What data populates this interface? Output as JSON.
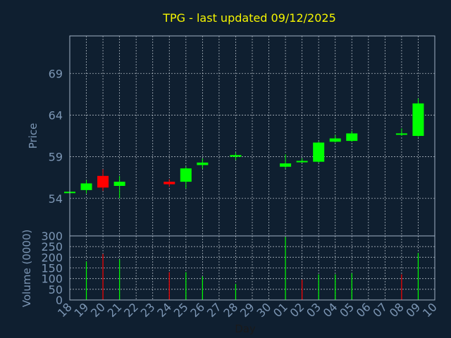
{
  "chart_data": [
    {
      "type": "candlestick",
      "title": "TPG - last updated 09/12/2025",
      "ylabel": "Price",
      "ylim": [
        49.5,
        73.5
      ],
      "yticks": [
        54,
        59,
        64,
        69
      ],
      "grid": true,
      "up_color": "#00ff00",
      "down_color": "#ff0000",
      "candles": [
        {
          "day": "18",
          "open": 54.8,
          "high": 54.9,
          "low": 54.6,
          "close": 54.8
        },
        {
          "day": "19",
          "open": 55.0,
          "high": 56.2,
          "low": 54.6,
          "close": 55.8
        },
        {
          "day": "20",
          "open": 56.7,
          "high": 57.5,
          "low": 54.9,
          "close": 55.3
        },
        {
          "day": "21",
          "open": 55.5,
          "high": 56.7,
          "low": 54.0,
          "close": 56.0
        },
        {
          "day": "24",
          "open": 56.0,
          "high": 56.3,
          "low": 55.4,
          "close": 55.7
        },
        {
          "day": "25",
          "open": 56.0,
          "high": 57.8,
          "low": 55.2,
          "close": 57.6
        },
        {
          "day": "26",
          "open": 58.0,
          "high": 58.8,
          "low": 57.6,
          "close": 58.3
        },
        {
          "day": "28",
          "open": 59.0,
          "high": 59.5,
          "low": 58.6,
          "close": 59.2
        },
        {
          "day": "01",
          "open": 57.8,
          "high": 59.3,
          "low": 57.6,
          "close": 58.2
        },
        {
          "day": "02",
          "open": 58.5,
          "high": 58.8,
          "low": 58.3,
          "close": 58.5
        },
        {
          "day": "03",
          "open": 58.4,
          "high": 60.8,
          "low": 58.3,
          "close": 60.7
        },
        {
          "day": "04",
          "open": 60.8,
          "high": 61.6,
          "low": 60.7,
          "close": 61.2
        },
        {
          "day": "05",
          "open": 60.9,
          "high": 62.1,
          "low": 60.8,
          "close": 61.8
        },
        {
          "day": "08",
          "open": 61.8,
          "high": 62.4,
          "low": 61.5,
          "close": 61.8
        },
        {
          "day": "09",
          "open": 61.5,
          "high": 66.0,
          "low": 61.4,
          "close": 65.4
        }
      ]
    },
    {
      "type": "bar",
      "ylabel": "Volume (0000)",
      "xlabel": "Day",
      "ylim": [
        0,
        300
      ],
      "yticks": [
        0,
        50,
        100,
        150,
        200,
        250,
        300
      ],
      "grid": true,
      "categories": [
        "18",
        "19",
        "20",
        "21",
        "22",
        "23",
        "24",
        "25",
        "26",
        "27",
        "28",
        "29",
        "30",
        "01",
        "02",
        "03",
        "04",
        "05",
        "06",
        "07",
        "08",
        "09",
        "10"
      ],
      "bars": [
        {
          "day": "19",
          "value": 180,
          "direction": "up"
        },
        {
          "day": "20",
          "value": 215,
          "direction": "down"
        },
        {
          "day": "21",
          "value": 190,
          "direction": "up"
        },
        {
          "day": "24",
          "value": 130,
          "direction": "down"
        },
        {
          "day": "25",
          "value": 130,
          "direction": "up"
        },
        {
          "day": "26",
          "value": 110,
          "direction": "up"
        },
        {
          "day": "28",
          "value": 75,
          "direction": "up"
        },
        {
          "day": "01",
          "value": 295,
          "direction": "up"
        },
        {
          "day": "02",
          "value": 95,
          "direction": "down"
        },
        {
          "day": "03",
          "value": 120,
          "direction": "up"
        },
        {
          "day": "04",
          "value": 120,
          "direction": "up"
        },
        {
          "day": "05",
          "value": 125,
          "direction": "up"
        },
        {
          "day": "08",
          "value": 120,
          "direction": "down"
        },
        {
          "day": "09",
          "value": 220,
          "direction": "up"
        }
      ]
    }
  ]
}
